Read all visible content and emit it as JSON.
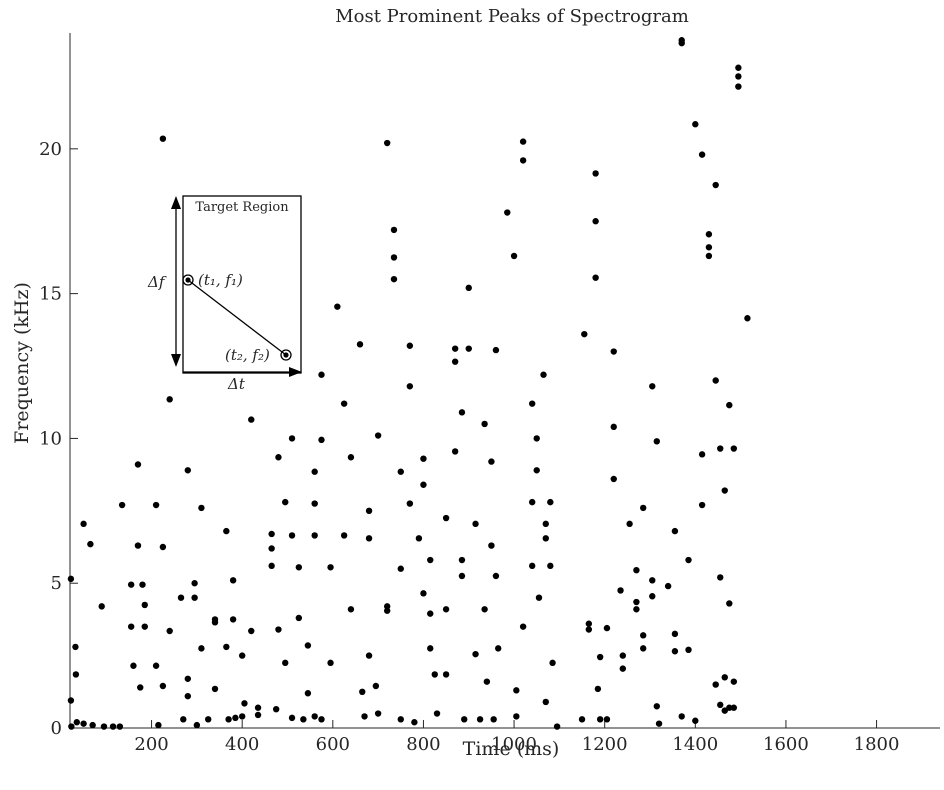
{
  "chart_data": {
    "type": "scatter",
    "title": "Most Prominent Peaks of Spectrogram",
    "xlabel": "Time (ms)",
    "ylabel": "Frequency (kHz)",
    "xlim": [
      20,
      1940
    ],
    "ylim": [
      0,
      24
    ],
    "xticks": [
      200,
      400,
      600,
      800,
      1000,
      1200,
      1400,
      1600,
      1800
    ],
    "yticks": [
      0,
      5,
      10,
      15,
      20
    ],
    "xtick_labels": [
      "200",
      "400",
      "600",
      "800",
      "1000",
      "1200",
      "1400",
      "1600",
      "1800"
    ],
    "ytick_labels": [
      "0",
      "5",
      "10",
      "15",
      "20"
    ],
    "grid": false,
    "marker_color": "#000000",
    "points": [
      [
        22,
        5.15
      ],
      [
        22,
        0.95
      ],
      [
        23,
        0.05
      ],
      [
        32,
        2.8
      ],
      [
        33,
        1.85
      ],
      [
        35,
        0.2
      ],
      [
        50,
        7.05
      ],
      [
        50,
        0.15
      ],
      [
        65,
        6.35
      ],
      [
        70,
        0.1
      ],
      [
        90,
        4.2
      ],
      [
        95,
        0.05
      ],
      [
        115,
        0.05
      ],
      [
        130,
        0.05
      ],
      [
        135,
        7.7
      ],
      [
        155,
        4.95
      ],
      [
        155,
        3.5
      ],
      [
        160,
        2.15
      ],
      [
        170,
        9.1
      ],
      [
        170,
        6.3
      ],
      [
        175,
        1.4
      ],
      [
        180,
        4.95
      ],
      [
        185,
        4.25
      ],
      [
        185,
        3.5
      ],
      [
        210,
        7.7
      ],
      [
        210,
        2.15
      ],
      [
        215,
        0.1
      ],
      [
        225,
        20.35
      ],
      [
        225,
        6.25
      ],
      [
        225,
        1.45
      ],
      [
        240,
        11.35
      ],
      [
        240,
        3.35
      ],
      [
        265,
        4.5
      ],
      [
        270,
        0.3
      ],
      [
        280,
        8.9
      ],
      [
        280,
        1.7
      ],
      [
        280,
        1.1
      ],
      [
        295,
        5.0
      ],
      [
        295,
        4.5
      ],
      [
        300,
        0.1
      ],
      [
        310,
        7.6
      ],
      [
        310,
        2.75
      ],
      [
        325,
        0.3
      ],
      [
        340,
        3.75
      ],
      [
        340,
        3.65
      ],
      [
        340,
        1.35
      ],
      [
        365,
        6.8
      ],
      [
        365,
        2.8
      ],
      [
        370,
        0.3
      ],
      [
        380,
        5.1
      ],
      [
        380,
        3.75
      ],
      [
        385,
        0.35
      ],
      [
        400,
        0.4
      ],
      [
        400,
        2.5
      ],
      [
        405,
        0.85
      ],
      [
        420,
        10.65
      ],
      [
        420,
        3.35
      ],
      [
        435,
        0.7
      ],
      [
        435,
        0.45
      ],
      [
        465,
        6.7
      ],
      [
        465,
        6.2
      ],
      [
        465,
        5.6
      ],
      [
        475,
        0.65
      ],
      [
        480,
        9.35
      ],
      [
        480,
        3.4
      ],
      [
        495,
        7.8
      ],
      [
        495,
        2.25
      ],
      [
        510,
        10.0
      ],
      [
        510,
        6.65
      ],
      [
        510,
        0.35
      ],
      [
        525,
        5.55
      ],
      [
        525,
        3.8
      ],
      [
        535,
        0.3
      ],
      [
        545,
        2.85
      ],
      [
        545,
        1.2
      ],
      [
        560,
        8.85
      ],
      [
        560,
        7.75
      ],
      [
        560,
        6.65
      ],
      [
        560,
        0.4
      ],
      [
        575,
        12.2
      ],
      [
        575,
        9.95
      ],
      [
        575,
        0.3
      ],
      [
        595,
        5.55
      ],
      [
        595,
        2.25
      ],
      [
        610,
        14.55
      ],
      [
        625,
        11.2
      ],
      [
        625,
        6.65
      ],
      [
        640,
        9.35
      ],
      [
        640,
        4.1
      ],
      [
        660,
        13.25
      ],
      [
        665,
        1.25
      ],
      [
        670,
        0.4
      ],
      [
        680,
        7.5
      ],
      [
        680,
        6.55
      ],
      [
        680,
        2.5
      ],
      [
        695,
        1.45
      ],
      [
        700,
        0.5
      ],
      [
        700,
        10.1
      ],
      [
        720,
        20.2
      ],
      [
        720,
        4.2
      ],
      [
        720,
        4.05
      ],
      [
        735,
        17.2
      ],
      [
        735,
        16.25
      ],
      [
        735,
        15.5
      ],
      [
        750,
        8.85
      ],
      [
        750,
        5.5
      ],
      [
        750,
        0.3
      ],
      [
        770,
        13.2
      ],
      [
        770,
        11.8
      ],
      [
        770,
        7.75
      ],
      [
        780,
        0.2
      ],
      [
        790,
        6.55
      ],
      [
        800,
        9.3
      ],
      [
        800,
        8.4
      ],
      [
        800,
        4.65
      ],
      [
        815,
        5.8
      ],
      [
        815,
        3.95
      ],
      [
        815,
        2.75
      ],
      [
        825,
        1.85
      ],
      [
        830,
        0.5
      ],
      [
        850,
        7.25
      ],
      [
        850,
        4.1
      ],
      [
        850,
        1.85
      ],
      [
        870,
        13.1
      ],
      [
        870,
        12.65
      ],
      [
        870,
        9.55
      ],
      [
        885,
        10.9
      ],
      [
        885,
        5.8
      ],
      [
        885,
        5.25
      ],
      [
        890,
        0.3
      ],
      [
        900,
        15.2
      ],
      [
        900,
        13.1
      ],
      [
        915,
        7.05
      ],
      [
        915,
        2.55
      ],
      [
        925,
        0.3
      ],
      [
        935,
        10.5
      ],
      [
        935,
        4.1
      ],
      [
        940,
        1.6
      ],
      [
        950,
        9.2
      ],
      [
        950,
        6.3
      ],
      [
        955,
        0.3
      ],
      [
        960,
        13.05
      ],
      [
        960,
        5.25
      ],
      [
        965,
        2.75
      ],
      [
        985,
        17.8
      ],
      [
        1000,
        16.3
      ],
      [
        1005,
        1.3
      ],
      [
        1005,
        0.4
      ],
      [
        1020,
        20.25
      ],
      [
        1020,
        19.6
      ],
      [
        1020,
        3.5
      ],
      [
        1040,
        11.2
      ],
      [
        1040,
        7.8
      ],
      [
        1040,
        5.6
      ],
      [
        1050,
        10.0
      ],
      [
        1050,
        8.9
      ],
      [
        1055,
        4.5
      ],
      [
        1065,
        12.2
      ],
      [
        1070,
        7.05
      ],
      [
        1070,
        6.55
      ],
      [
        1070,
        0.9
      ],
      [
        1080,
        7.8
      ],
      [
        1080,
        5.6
      ],
      [
        1085,
        2.25
      ],
      [
        1095,
        0.05
      ],
      [
        1150,
        0.3
      ],
      [
        1155,
        13.6
      ],
      [
        1165,
        3.6
      ],
      [
        1165,
        3.4
      ],
      [
        1180,
        19.15
      ],
      [
        1180,
        17.5
      ],
      [
        1180,
        15.55
      ],
      [
        1185,
        1.35
      ],
      [
        1190,
        2.45
      ],
      [
        1190,
        0.3
      ],
      [
        1205,
        3.45
      ],
      [
        1205,
        0.3
      ],
      [
        1220,
        13.0
      ],
      [
        1220,
        10.4
      ],
      [
        1220,
        8.6
      ],
      [
        1235,
        4.75
      ],
      [
        1240,
        2.5
      ],
      [
        1240,
        2.05
      ],
      [
        1255,
        7.05
      ],
      [
        1270,
        5.45
      ],
      [
        1270,
        4.35
      ],
      [
        1270,
        4.1
      ],
      [
        1285,
        7.6
      ],
      [
        1285,
        3.2
      ],
      [
        1285,
        2.75
      ],
      [
        1305,
        11.8
      ],
      [
        1305,
        5.1
      ],
      [
        1305,
        4.55
      ],
      [
        1315,
        9.9
      ],
      [
        1315,
        0.75
      ],
      [
        1320,
        0.15
      ],
      [
        1340,
        4.9
      ],
      [
        1355,
        6.8
      ],
      [
        1355,
        3.25
      ],
      [
        1355,
        2.65
      ],
      [
        1370,
        23.75
      ],
      [
        1370,
        23.65
      ],
      [
        1370,
        0.4
      ],
      [
        1385,
        5.8
      ],
      [
        1385,
        2.7
      ],
      [
        1400,
        20.85
      ],
      [
        1400,
        0.25
      ],
      [
        1415,
        19.8
      ],
      [
        1415,
        9.45
      ],
      [
        1415,
        7.7
      ],
      [
        1430,
        17.05
      ],
      [
        1430,
        16.6
      ],
      [
        1430,
        16.3
      ],
      [
        1445,
        18.75
      ],
      [
        1445,
        12.0
      ],
      [
        1445,
        1.5
      ],
      [
        1455,
        9.65
      ],
      [
        1455,
        5.2
      ],
      [
        1455,
        0.8
      ],
      [
        1465,
        8.2
      ],
      [
        1465,
        1.75
      ],
      [
        1465,
        0.6
      ],
      [
        1475,
        11.15
      ],
      [
        1475,
        4.3
      ],
      [
        1475,
        0.7
      ],
      [
        1485,
        9.65
      ],
      [
        1485,
        1.6
      ],
      [
        1485,
        0.7
      ],
      [
        1495,
        22.8
      ],
      [
        1495,
        22.5
      ],
      [
        1495,
        22.15
      ],
      [
        1515,
        14.15
      ]
    ],
    "inset": {
      "title": "Target Region",
      "delta_f": "Δf",
      "delta_t": "Δt",
      "point1_label": "(t₁, f₁)",
      "point2_label": "(t₂, f₂)"
    }
  }
}
